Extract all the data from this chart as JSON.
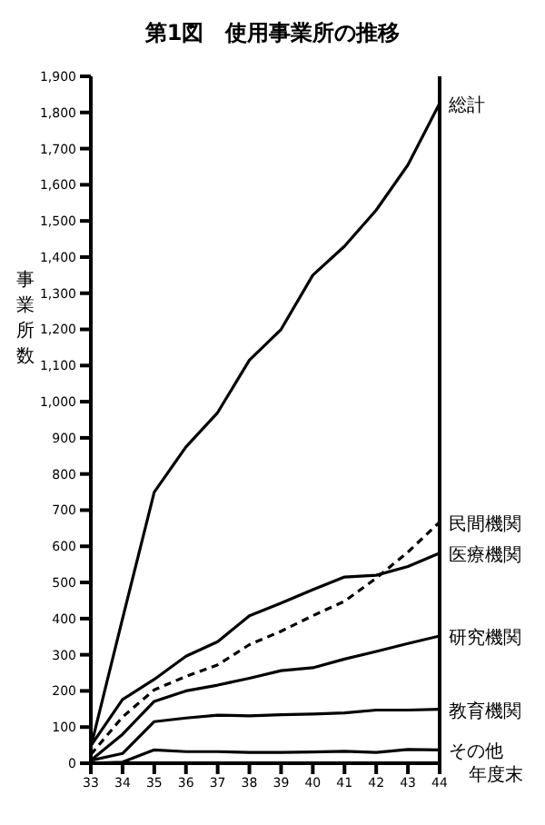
{
  "chart_data": {
    "type": "line",
    "title": "第1図　使用事業所の推移",
    "ylabel": "事業所数",
    "xlabel": "年度末",
    "x": [
      33,
      34,
      35,
      36,
      37,
      38,
      39,
      40,
      41,
      42,
      43,
      44
    ],
    "series": [
      {
        "name": "総計",
        "color": "#000000",
        "values": [
          45,
          400,
          750,
          875,
          970,
          1115,
          1200,
          1350,
          1430,
          1530,
          1655,
          1825
        ]
      },
      {
        "name": "民間機関",
        "color": "#000000",
        "line_style": "dashed",
        "values": [
          24,
          128,
          203,
          240,
          272,
          328,
          365,
          408,
          448,
          512,
          584,
          667
        ]
      },
      {
        "name": "医療機関",
        "color": "#000000",
        "values": [
          48,
          176,
          232,
          296,
          336,
          408,
          443,
          480,
          515,
          520,
          544,
          581
        ]
      },
      {
        "name": "研究機関",
        "color": "#000000",
        "values": [
          8,
          80,
          171,
          200,
          216,
          235,
          256,
          264,
          288,
          309,
          331,
          352
        ]
      },
      {
        "name": "教育機関",
        "color": "#000000",
        "values": [
          8,
          27,
          115,
          125,
          133,
          131,
          134,
          136,
          139,
          147,
          147,
          149
        ]
      },
      {
        "name": "その他",
        "color": "#000000",
        "values": [
          0,
          3,
          37,
          32,
          32,
          30,
          30,
          31,
          33,
          30,
          38,
          37
        ]
      }
    ],
    "xlim": [
      33,
      44
    ],
    "xticks": [
      33,
      34,
      35,
      36,
      37,
      38,
      39,
      40,
      41,
      42,
      43,
      44
    ],
    "ylim": [
      0,
      1900
    ],
    "yticks": [
      0,
      100,
      200,
      300,
      400,
      500,
      600,
      700,
      800,
      900,
      {
        "value": 1000,
        "label": "1,000"
      },
      {
        "value": 1100,
        "label": "1,100"
      },
      {
        "value": 1200,
        "label": "1,200"
      },
      {
        "value": 1300,
        "label": "1,300"
      },
      {
        "value": 1400,
        "label": "1,400"
      },
      {
        "value": 1500,
        "label": "1,500"
      },
      {
        "value": 1600,
        "label": "1,600"
      },
      {
        "value": 1700,
        "label": "1,700"
      },
      {
        "value": 1800,
        "label": "1,800"
      },
      {
        "value": 1900,
        "label": "1,900"
      }
    ],
    "ref_lines": [
      {
        "axis": "x",
        "value": 44,
        "label": null
      }
    ],
    "grid": false,
    "legend": false,
    "marker": "none",
    "line_style": "solid"
  }
}
